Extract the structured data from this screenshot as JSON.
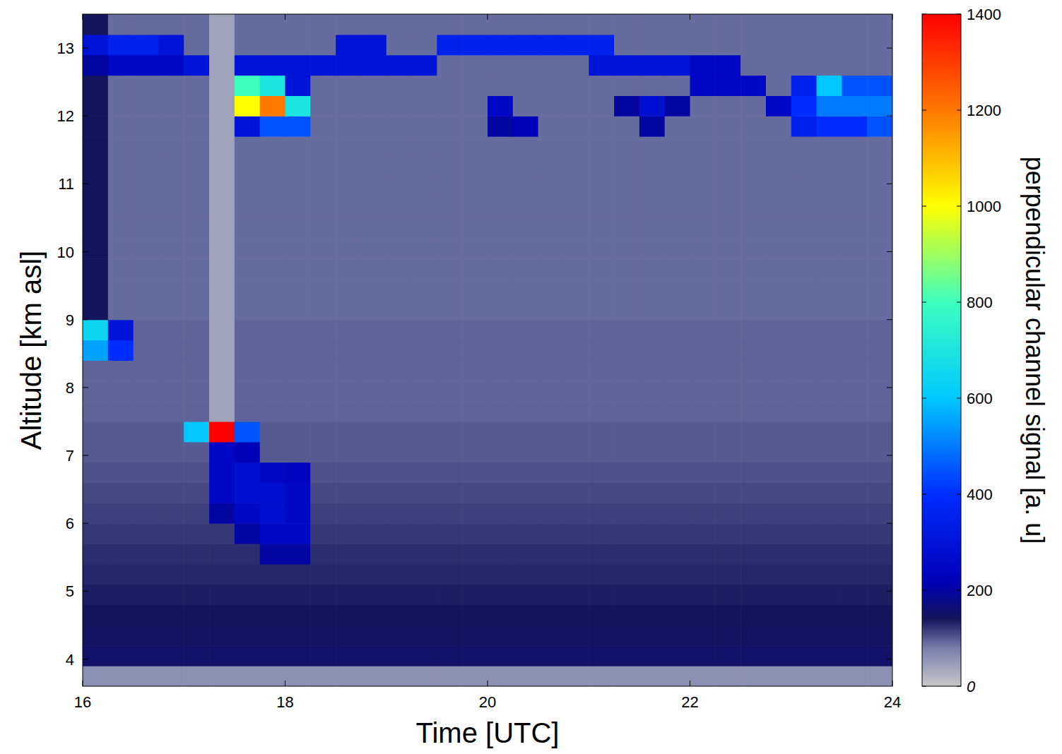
{
  "chart_data": {
    "type": "heatmap",
    "xlabel": "Time [UTC]",
    "ylabel": "Altitude [km asl]",
    "xlim": [
      16,
      24
    ],
    "ylim": [
      3.6,
      13.5
    ],
    "xticks": [
      16,
      18,
      20,
      22,
      24
    ],
    "yticks": [
      4,
      5,
      6,
      7,
      8,
      9,
      10,
      11,
      12,
      13
    ],
    "x_edges": [
      16,
      16.25,
      16.5,
      16.75,
      17,
      17.25,
      17.5,
      17.75,
      18,
      18.25,
      18.5,
      18.75,
      19,
      19.25,
      19.5,
      19.75,
      20,
      20.25,
      20.5,
      20.75,
      21,
      21.25,
      21.5,
      21.75,
      22,
      22.25,
      22.5,
      22.75,
      23,
      23.25,
      23.5,
      23.75,
      24
    ],
    "y_edges": [
      3.6,
      3.9,
      4.2,
      4.5,
      4.8,
      5.1,
      5.4,
      5.7,
      6.0,
      6.3,
      6.6,
      6.9,
      7.2,
      7.5,
      7.8,
      8.1,
      8.4,
      8.7,
      9.0,
      9.3,
      9.6,
      9.9,
      10.2,
      10.5,
      10.8,
      11.1,
      11.4,
      11.7,
      12.0,
      12.3,
      12.6,
      12.9,
      13.2,
      13.5
    ],
    "values": [
      [
        60,
        60,
        60,
        60,
        60,
        60,
        60,
        60,
        60,
        60,
        60,
        60,
        60,
        60,
        60,
        60,
        60,
        60,
        60,
        60,
        60,
        60,
        60,
        60,
        60,
        60,
        60,
        60,
        60,
        60,
        60,
        60
      ],
      [
        150,
        150,
        150,
        150,
        150,
        150,
        150,
        150,
        150,
        150,
        150,
        150,
        150,
        150,
        150,
        150,
        150,
        150,
        150,
        150,
        150,
        150,
        150,
        150,
        150,
        150,
        150,
        150,
        150,
        150,
        150,
        150
      ],
      [
        145,
        145,
        145,
        145,
        145,
        145,
        145,
        145,
        145,
        145,
        145,
        145,
        145,
        145,
        145,
        145,
        145,
        145,
        145,
        145,
        145,
        145,
        145,
        145,
        145,
        145,
        145,
        145,
        145,
        145,
        145,
        145
      ],
      [
        140,
        140,
        140,
        140,
        140,
        140,
        140,
        140,
        140,
        140,
        140,
        140,
        140,
        140,
        140,
        140,
        140,
        140,
        140,
        140,
        140,
        140,
        140,
        140,
        140,
        140,
        140,
        140,
        140,
        140,
        140,
        140
      ],
      [
        135,
        135,
        135,
        135,
        135,
        135,
        135,
        135,
        135,
        135,
        135,
        135,
        135,
        135,
        135,
        135,
        135,
        135,
        135,
        135,
        135,
        135,
        135,
        135,
        135,
        135,
        135,
        135,
        135,
        135,
        135,
        135
      ],
      [
        130,
        130,
        130,
        130,
        130,
        130,
        130,
        130,
        130,
        130,
        130,
        130,
        130,
        130,
        130,
        130,
        130,
        130,
        130,
        130,
        130,
        130,
        130,
        130,
        130,
        130,
        130,
        130,
        130,
        130,
        130,
        130
      ],
      [
        125,
        125,
        125,
        125,
        125,
        125,
        125,
        200,
        200,
        125,
        125,
        125,
        125,
        125,
        125,
        125,
        125,
        125,
        125,
        125,
        125,
        125,
        125,
        125,
        125,
        125,
        125,
        125,
        125,
        125,
        125,
        125
      ],
      [
        120,
        120,
        120,
        120,
        120,
        120,
        200,
        250,
        250,
        120,
        120,
        120,
        120,
        120,
        120,
        120,
        120,
        120,
        120,
        120,
        120,
        120,
        120,
        120,
        120,
        120,
        120,
        120,
        120,
        120,
        120,
        120
      ],
      [
        115,
        115,
        115,
        115,
        115,
        200,
        250,
        280,
        250,
        115,
        115,
        115,
        115,
        115,
        115,
        115,
        115,
        115,
        115,
        115,
        115,
        115,
        115,
        115,
        115,
        115,
        115,
        115,
        115,
        115,
        115,
        115
      ],
      [
        110,
        110,
        110,
        110,
        110,
        250,
        280,
        280,
        250,
        110,
        110,
        110,
        110,
        110,
        110,
        110,
        110,
        110,
        110,
        110,
        110,
        110,
        110,
        110,
        110,
        110,
        110,
        110,
        110,
        110,
        110,
        110
      ],
      [
        105,
        105,
        105,
        105,
        105,
        250,
        280,
        250,
        230,
        105,
        105,
        105,
        105,
        105,
        105,
        105,
        105,
        105,
        105,
        105,
        105,
        105,
        105,
        105,
        105,
        105,
        105,
        105,
        105,
        105,
        105,
        105
      ],
      [
        100,
        100,
        100,
        100,
        100,
        250,
        220,
        100,
        100,
        100,
        100,
        100,
        100,
        100,
        100,
        100,
        100,
        100,
        100,
        100,
        100,
        100,
        100,
        100,
        100,
        100,
        100,
        100,
        100,
        100,
        100,
        100
      ],
      [
        100,
        100,
        100,
        100,
        600,
        1400,
        450,
        100,
        100,
        100,
        100,
        100,
        100,
        100,
        100,
        100,
        100,
        100,
        100,
        100,
        100,
        100,
        100,
        100,
        100,
        100,
        100,
        100,
        100,
        100,
        100,
        100
      ],
      [
        95,
        95,
        95,
        95,
        95,
        40,
        95,
        95,
        95,
        95,
        95,
        95,
        95,
        95,
        95,
        95,
        95,
        95,
        95,
        95,
        95,
        95,
        95,
        95,
        95,
        95,
        95,
        95,
        95,
        95,
        95,
        95
      ],
      [
        95,
        95,
        95,
        95,
        95,
        40,
        95,
        95,
        95,
        95,
        95,
        95,
        95,
        95,
        95,
        95,
        95,
        95,
        95,
        95,
        95,
        95,
        95,
        95,
        95,
        95,
        95,
        95,
        95,
        95,
        95,
        95
      ],
      [
        95,
        95,
        95,
        95,
        95,
        40,
        95,
        95,
        95,
        95,
        95,
        95,
        95,
        95,
        95,
        95,
        95,
        95,
        95,
        95,
        95,
        95,
        95,
        95,
        95,
        95,
        95,
        95,
        95,
        95,
        95,
        95
      ],
      [
        550,
        400,
        95,
        95,
        95,
        40,
        95,
        95,
        95,
        95,
        95,
        95,
        95,
        95,
        95,
        95,
        95,
        95,
        95,
        95,
        95,
        95,
        95,
        95,
        95,
        95,
        95,
        95,
        95,
        95,
        95,
        95
      ],
      [
        650,
        300,
        95,
        95,
        95,
        40,
        95,
        95,
        95,
        95,
        95,
        95,
        95,
        95,
        95,
        95,
        95,
        95,
        95,
        95,
        95,
        95,
        95,
        95,
        95,
        95,
        95,
        95,
        95,
        95,
        95,
        95
      ],
      [
        140,
        90,
        90,
        90,
        90,
        40,
        90,
        90,
        90,
        90,
        90,
        90,
        90,
        90,
        90,
        90,
        90,
        90,
        90,
        90,
        90,
        90,
        90,
        90,
        90,
        90,
        90,
        90,
        90,
        90,
        90,
        90
      ],
      [
        140,
        90,
        90,
        90,
        90,
        40,
        90,
        90,
        90,
        90,
        90,
        90,
        90,
        90,
        90,
        90,
        90,
        90,
        90,
        90,
        90,
        90,
        90,
        90,
        90,
        90,
        90,
        90,
        90,
        90,
        90,
        90
      ],
      [
        140,
        90,
        90,
        90,
        90,
        40,
        90,
        90,
        90,
        90,
        90,
        90,
        90,
        90,
        90,
        90,
        90,
        90,
        90,
        90,
        90,
        90,
        90,
        90,
        90,
        90,
        90,
        90,
        90,
        90,
        90,
        90
      ],
      [
        140,
        90,
        90,
        90,
        90,
        40,
        90,
        90,
        90,
        90,
        90,
        90,
        90,
        90,
        90,
        90,
        90,
        90,
        90,
        90,
        90,
        90,
        90,
        90,
        90,
        90,
        90,
        90,
        90,
        90,
        90,
        90
      ],
      [
        140,
        90,
        90,
        90,
        90,
        40,
        90,
        90,
        90,
        90,
        90,
        90,
        90,
        90,
        90,
        90,
        90,
        90,
        90,
        90,
        90,
        90,
        90,
        90,
        90,
        90,
        90,
        90,
        90,
        90,
        90,
        90
      ],
      [
        140,
        90,
        90,
        90,
        90,
        40,
        90,
        90,
        90,
        90,
        90,
        90,
        90,
        90,
        90,
        90,
        90,
        90,
        90,
        90,
        90,
        90,
        90,
        90,
        90,
        90,
        90,
        90,
        90,
        90,
        90,
        90
      ],
      [
        140,
        90,
        90,
        90,
        90,
        40,
        90,
        90,
        90,
        90,
        90,
        90,
        90,
        90,
        90,
        90,
        90,
        90,
        90,
        90,
        90,
        90,
        90,
        90,
        90,
        90,
        90,
        90,
        90,
        90,
        90,
        90
      ],
      [
        140,
        90,
        90,
        90,
        90,
        40,
        90,
        90,
        90,
        90,
        90,
        90,
        90,
        90,
        90,
        90,
        90,
        90,
        90,
        90,
        90,
        90,
        90,
        90,
        90,
        90,
        90,
        90,
        90,
        90,
        90,
        90
      ],
      [
        140,
        90,
        90,
        90,
        90,
        40,
        90,
        90,
        90,
        90,
        90,
        90,
        90,
        90,
        90,
        90,
        90,
        90,
        90,
        90,
        90,
        90,
        90,
        90,
        90,
        90,
        90,
        90,
        90,
        90,
        90,
        90
      ],
      [
        140,
        90,
        90,
        90,
        90,
        40,
        300,
        450,
        450,
        90,
        90,
        90,
        90,
        90,
        90,
        90,
        200,
        220,
        90,
        90,
        90,
        90,
        200,
        90,
        90,
        90,
        90,
        90,
        350,
        400,
        400,
        450
      ],
      [
        140,
        90,
        90,
        90,
        90,
        40,
        1000,
        1200,
        700,
        90,
        90,
        90,
        90,
        90,
        90,
        90,
        250,
        90,
        90,
        90,
        90,
        200,
        280,
        200,
        90,
        90,
        90,
        250,
        400,
        500,
        500,
        500
      ],
      [
        140,
        90,
        90,
        90,
        90,
        40,
        800,
        700,
        300,
        90,
        90,
        90,
        90,
        90,
        90,
        90,
        90,
        90,
        90,
        90,
        90,
        90,
        90,
        90,
        250,
        250,
        250,
        90,
        350,
        600,
        450,
        450
      ],
      [
        200,
        250,
        250,
        250,
        300,
        40,
        300,
        300,
        300,
        300,
        300,
        300,
        300,
        300,
        90,
        90,
        90,
        90,
        90,
        90,
        300,
        300,
        300,
        300,
        250,
        250,
        90,
        90,
        90,
        90,
        90,
        90
      ],
      [
        300,
        350,
        350,
        300,
        90,
        40,
        90,
        90,
        90,
        90,
        300,
        300,
        90,
        90,
        350,
        350,
        350,
        350,
        350,
        350,
        350,
        90,
        90,
        90,
        90,
        90,
        90,
        90,
        90,
        90,
        90,
        90
      ],
      [
        140,
        90,
        90,
        90,
        90,
        40,
        90,
        90,
        90,
        90,
        90,
        90,
        90,
        90,
        90,
        90,
        90,
        90,
        90,
        90,
        90,
        90,
        90,
        90,
        90,
        90,
        90,
        90,
        90,
        90,
        90,
        90
      ]
    ],
    "colorbar": {
      "label": "perpendicular channel signal [a. u]",
      "range": [
        0,
        1400
      ],
      "ticks": [
        0,
        200,
        400,
        600,
        800,
        1000,
        1200,
        1400
      ]
    }
  }
}
